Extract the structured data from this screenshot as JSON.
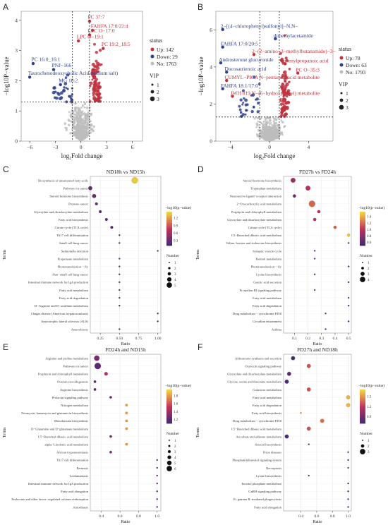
{
  "panels": {
    "A": "A",
    "B": "B",
    "C": "C",
    "D": "D",
    "E": "E",
    "F": "F"
  },
  "colors": {
    "up": "#c0313e",
    "down": "#2f3f8f",
    "no": "#bdbdbd",
    "cbar_low": "#3b2a78",
    "cbar_mid": "#c0305a",
    "cbar_high": "#f3d43a"
  },
  "chart_data": [
    {
      "panel": "A",
      "type": "scatter",
      "xlabel_main": "log",
      "xlabel_sub": "2",
      "xlabel_rest": "Fold change",
      "ylabel": "−log10P−value",
      "xticks": [
        "−6",
        "−3",
        "0",
        "3",
        "6"
      ],
      "xtick_values": [
        -6,
        -3,
        0,
        3,
        6
      ],
      "yticks": [
        "0",
        "1",
        "2",
        "3",
        "4"
      ],
      "ytick_values": [
        0,
        1,
        2,
        3,
        4
      ],
      "xlim": [
        -7,
        7.2
      ],
      "ylim": [
        0,
        4.3
      ],
      "thresholds": {
        "x": [
          -1,
          1
        ],
        "y": 1.3
      },
      "legend": {
        "status_title": "status",
        "up": "Up: 142",
        "down": "Down: 29",
        "no": "No: 1763",
        "vip_title": "VIP",
        "vip_levels": [
          "1",
          "2",
          "3"
        ]
      },
      "annotations": [
        {
          "text": "PC 37:7",
          "x": 0.8,
          "y": 4.05,
          "side": "up"
        },
        {
          "text": "FAHFA 17:0/22:4",
          "x": 1.15,
          "y": 3.75,
          "side": "up"
        },
        {
          "text": "LPC O−17:0",
          "x": 0.8,
          "y": 3.6,
          "side": "up"
        },
        {
          "text": "LPC O−19:1",
          "x": -0.5,
          "y": 3.4,
          "side": "up"
        },
        {
          "text": "PC 19:2_18:5",
          "x": 2.4,
          "y": 3.15,
          "side": "up"
        },
        {
          "text": "PC 16:0_16:1",
          "x": -5.8,
          "y": 2.65,
          "side": "down"
        },
        {
          "text": "PNJ−166",
          "x": -3.4,
          "y": 2.45,
          "side": "down"
        },
        {
          "text": "Taurochenodeoxycholic Acid (sodium salt)",
          "x": -6.2,
          "y": 2.2,
          "side": "down"
        },
        {
          "text": "MG 18:2",
          "x": -2.6,
          "y": 1.95,
          "side": "down"
        }
      ]
    },
    {
      "panel": "B",
      "type": "scatter",
      "xlabel_main": "log",
      "xlabel_sub": "2",
      "xlabel_rest": "Fold change",
      "ylabel": "−log10P−value",
      "xticks": [
        "−4",
        "0",
        "4"
      ],
      "xtick_values": [
        -4,
        0,
        4
      ],
      "yticks": [
        "0",
        "2",
        "4",
        "6"
      ],
      "ytick_values": [
        0,
        2,
        4,
        6
      ],
      "xlim": [
        -5.5,
        6.5
      ],
      "ylim": [
        0,
        7
      ],
      "thresholds": {
        "x": [
          -1,
          1
        ],
        "y": 1.3
      },
      "legend": {
        "status_title": "status",
        "up": "Up: 78",
        "down": "Down: 63",
        "no": "No: 1793",
        "vip_title": "VIP",
        "vip_levels": [
          "1",
          "2",
          "3"
        ]
      },
      "annotations": [
        {
          "text": "2−[(4−chlorophenyl)sulfonyl]−N,N−",
          "x": -5.0,
          "y": 6.1,
          "side": "down"
        },
        {
          "text": "dimethylacetamide",
          "x": 0.4,
          "y": 5.6,
          "side": "down"
        },
        {
          "text": "FAHFA 17:0/20:5",
          "x": -5.0,
          "y": 5.15,
          "side": "down"
        },
        {
          "text": "2−(2−amino−3−methylbutanamido)−3−",
          "x": -1.8,
          "y": 4.75,
          "side": "up"
        },
        {
          "text": "Androsterone glucuronide",
          "x": -5.2,
          "y": 4.3,
          "side": "down"
        },
        {
          "text": "phenylpropanoic acid",
          "x": 1.4,
          "y": 4.25,
          "side": "up"
        },
        {
          "text": "Docosatrienoic acid",
          "x": -4.6,
          "y": 3.8,
          "side": "down"
        },
        {
          "text": "PC O−35:3",
          "x": 2.7,
          "y": 3.75,
          "side": "up"
        },
        {
          "text": "CUMYL−PICA N−pentanoic acid metabolite",
          "x": -4.6,
          "y": 3.35,
          "side": "up"
        },
        {
          "text": "FAHFA 18:1/17:0",
          "x": -5.0,
          "y": 2.9,
          "side": "down"
        },
        {
          "text": "JWH 019 N−(6−hydroxyhexyl) metabolite",
          "x": -4.0,
          "y": 2.5,
          "side": "up"
        }
      ]
    },
    {
      "panel": "C",
      "type": "scatter",
      "subtype": "enrichment",
      "title": "ND18h vs ND15h",
      "xlabel": "Ratio",
      "ylabel": "Terms",
      "xticks": [
        "0.25",
        "0.50",
        "0.75",
        "1.00"
      ],
      "xtick_values": [
        0.25,
        0.5,
        0.75,
        1.0
      ],
      "xlim": [
        0.12,
        1.04
      ],
      "colorbar": {
        "title": "−log10(p−value)",
        "ticks": [
          "1.2",
          "0.9",
          "0.6",
          "0.3"
        ],
        "tick_values": [
          1.2,
          0.9,
          0.6,
          0.3
        ],
        "range": [
          0.1,
          1.45
        ]
      },
      "size_legend": {
        "title": "Number",
        "levels": [
          "1",
          "2",
          "3",
          "4",
          "5"
        ]
      },
      "terms": [
        {
          "label": "Biosynthesis of unsaturated fatty acids",
          "ratio": 0.7,
          "number": 5,
          "logp": 1.4
        },
        {
          "label": "Pathways in cancer",
          "ratio": 0.12,
          "number": 3,
          "logp": 0.3
        },
        {
          "label": "Steroid hormone biosynthesis",
          "ratio": 0.17,
          "number": 3,
          "logp": 0.35
        },
        {
          "label": "Prostate cancer",
          "ratio": 0.2,
          "number": 2,
          "logp": 0.3
        },
        {
          "label": "Glyoxylate and dicarboxylate metabolism",
          "ratio": 0.25,
          "number": 2,
          "logp": 0.3
        },
        {
          "label": "Fatty acid biosynthesis",
          "ratio": 0.33,
          "number": 2,
          "logp": 0.25
        },
        {
          "label": "Citrate cycle (TCA cycle)",
          "ratio": 0.4,
          "number": 2,
          "logp": 0.25
        },
        {
          "label": "Th17 cell differentiation",
          "ratio": 0.5,
          "number": 1,
          "logp": 0.2
        },
        {
          "label": "Small cell lung cancer",
          "ratio": 0.5,
          "number": 1,
          "logp": 0.2
        },
        {
          "label": "Salmonella infection",
          "ratio": 1.0,
          "number": 1,
          "logp": 0.2
        },
        {
          "label": "Propanoate metabolism",
          "ratio": 0.5,
          "number": 1,
          "logp": 0.2
        },
        {
          "label": "Phototransduction − fly",
          "ratio": 0.5,
          "number": 1,
          "logp": 0.2
        },
        {
          "label": "Non−small cell lung cancer",
          "ratio": 0.5,
          "number": 1,
          "logp": 0.2
        },
        {
          "label": "Intestinal immune network for IgA production",
          "ratio": 0.5,
          "number": 1,
          "logp": 0.2
        },
        {
          "label": "Fatty acid metabolism",
          "ratio": 0.5,
          "number": 1,
          "logp": 0.2
        },
        {
          "label": "Fatty acid degradation",
          "ratio": 0.5,
          "number": 1,
          "logp": 0.2
        },
        {
          "label": "D−Arginine and D−ornithine metabolism",
          "ratio": 0.5,
          "number": 1,
          "logp": 0.2
        },
        {
          "label": "Chagas disease (American trypanosomiasis)",
          "ratio": 1.0,
          "number": 1,
          "logp": 0.2
        },
        {
          "label": "Amyotrophic lateral sclerosis (ALS)",
          "ratio": 1.0,
          "number": 1,
          "logp": 0.2
        },
        {
          "label": "Anaerobiosis",
          "ratio": 0.5,
          "number": 1,
          "logp": 0.2
        }
      ]
    },
    {
      "panel": "D",
      "type": "scatter",
      "subtype": "enrichment",
      "title": "FD27h vs FD24h",
      "xlabel": "Ratio",
      "ylabel": "Terms",
      "xticks": [
        "0.1",
        "0.2",
        "0.3",
        "0.4",
        "0.5"
      ],
      "xtick_values": [
        0.1,
        0.2,
        0.3,
        0.4,
        0.5
      ],
      "xlim": [
        0.02,
        0.52
      ],
      "colorbar": {
        "title": "−log10(p−value)",
        "ticks": [
          "1.4",
          "1.2",
          "1.0",
          "0.8",
          "0.6"
        ],
        "tick_values": [
          1.4,
          1.2,
          1.0,
          0.8,
          0.6
        ],
        "range": [
          0.5,
          1.55
        ]
      },
      "size_legend": {
        "title": "Number",
        "levels": [
          "1",
          "2",
          "3",
          "4"
        ]
      },
      "terms": [
        {
          "label": "Steroid hormone biosynthesis",
          "ratio": 0.09,
          "number": 3,
          "logp": 0.9
        },
        {
          "label": "Tryptophan metabolism",
          "ratio": 0.2,
          "number": 3,
          "logp": 1.0
        },
        {
          "label": "Neuroactive ligand−receptor interaction",
          "ratio": 0.1,
          "number": 2,
          "logp": 0.7
        },
        {
          "label": "2−Oxocarboxylic acid metabolism",
          "ratio": 0.23,
          "number": 4,
          "logp": 1.2
        },
        {
          "label": "Porphyrin and chlorophyll metabolism",
          "ratio": 0.28,
          "number": 2,
          "logp": 1.0
        },
        {
          "label": "Glyoxylate and dicarboxylate metabolism",
          "ratio": 0.25,
          "number": 2,
          "logp": 1.0
        },
        {
          "label": "Citrate cycle (TCA cycle)",
          "ratio": 0.4,
          "number": 2,
          "logp": 1.2
        },
        {
          "label": "C5−Branched dibasic acid metabolism",
          "ratio": 0.5,
          "number": 2,
          "logp": 1.5
        },
        {
          "label": "Valine, leucine and isoleucine biosynthesis",
          "ratio": 0.5,
          "number": 1,
          "logp": 0.6
        },
        {
          "label": "Synaptic vesicle cycle",
          "ratio": 0.25,
          "number": 1,
          "logp": 0.6
        },
        {
          "label": "Retinol metabolism",
          "ratio": 0.25,
          "number": 1,
          "logp": 0.6
        },
        {
          "label": "Phototransduction − fly",
          "ratio": 0.5,
          "number": 1,
          "logp": 0.6
        },
        {
          "label": "Lysine biosynthesis",
          "ratio": 0.25,
          "number": 1,
          "logp": 0.6
        },
        {
          "label": "Gastric acid secretion",
          "ratio": 0.5,
          "number": 1,
          "logp": 0.6
        },
        {
          "label": "Fc epsilon RI signaling pathway",
          "ratio": 0.25,
          "number": 1,
          "logp": 0.6
        },
        {
          "label": "Fatty acid metabolism",
          "ratio": 0.5,
          "number": 1,
          "logp": 0.6
        },
        {
          "label": "Fatty acid degradation",
          "ratio": 0.5,
          "number": 1,
          "logp": 0.6
        },
        {
          "label": "Drug metabolism − cytochrome P450",
          "ratio": 0.33,
          "number": 1,
          "logp": 0.6
        },
        {
          "label": "Circadian entrainment",
          "ratio": 0.5,
          "number": 1,
          "logp": 0.6
        },
        {
          "label": "Asthma",
          "ratio": 0.33,
          "number": 1,
          "logp": 0.6
        }
      ]
    },
    {
      "panel": "E",
      "type": "scatter",
      "subtype": "enrichment",
      "title": "FD24h and ND15h",
      "xlabel": "Ratio",
      "ylabel": "Terms",
      "xticks": [
        "0.4",
        "0.6",
        "0.8",
        "1.0"
      ],
      "xtick_values": [
        0.4,
        0.6,
        0.8,
        1.0
      ],
      "xlim": [
        0.28,
        1.04
      ],
      "colorbar": {
        "title": "−log10(p−value)",
        "ticks": [
          "1.8",
          "1.6",
          "1.4",
          "1.2"
        ],
        "tick_values": [
          1.8,
          1.6,
          1.4,
          1.2
        ],
        "range": [
          1.1,
          1.95
        ]
      },
      "size_legend": {
        "title": "Number",
        "levels": [
          "1",
          "2",
          "3",
          "4",
          "5",
          "6"
        ]
      },
      "terms": [
        {
          "label": "Arginine and proline metabolism",
          "ratio": 0.35,
          "number": 5,
          "logp": 1.3
        },
        {
          "label": "Pathways in cancer",
          "ratio": 0.36,
          "number": 6,
          "logp": 1.2
        },
        {
          "label": "Porphyrin and chlorophyll metabolism",
          "ratio": 0.45,
          "number": 3,
          "logp": 1.5
        },
        {
          "label": "Ovarian steroidogenesis",
          "ratio": 0.33,
          "number": 2,
          "logp": 1.2
        },
        {
          "label": "Arginine biosynthesis",
          "ratio": 0.33,
          "number": 2,
          "logp": 1.2
        },
        {
          "label": "Prolactin signaling pathway",
          "ratio": 0.5,
          "number": 2,
          "logp": 1.3
        },
        {
          "label": "Nitrogen metabolism",
          "ratio": 0.67,
          "number": 2,
          "logp": 1.8
        },
        {
          "label": "Neomycin, kanamycin and gentamicin biosynthesis",
          "ratio": 0.67,
          "number": 2,
          "logp": 1.8
        },
        {
          "label": "Monobactam biosynthesis",
          "ratio": 0.67,
          "number": 2,
          "logp": 1.8
        },
        {
          "label": "D−Glutamine and D−glutamate metabolism",
          "ratio": 0.67,
          "number": 2,
          "logp": 1.8
        },
        {
          "label": "C5−Branched dibasic acid metabolism",
          "ratio": 0.5,
          "number": 2,
          "logp": 1.3
        },
        {
          "label": "alpha−Linolenic acid metabolism",
          "ratio": 0.67,
          "number": 2,
          "logp": 1.8
        },
        {
          "label": "African trypanosomiasis",
          "ratio": 0.5,
          "number": 2,
          "logp": 1.3
        },
        {
          "label": "Th17 cell differentiation",
          "ratio": 1.0,
          "number": 1,
          "logp": 1.2
        },
        {
          "label": "Pertussis",
          "ratio": 1.0,
          "number": 1,
          "logp": 1.2
        },
        {
          "label": "Leishmaniasis",
          "ratio": 1.0,
          "number": 1,
          "logp": 1.2
        },
        {
          "label": "Intestinal immune network for IgA production",
          "ratio": 1.0,
          "number": 1,
          "logp": 1.2
        },
        {
          "label": "Fatty acid elongation",
          "ratio": 1.0,
          "number": 1,
          "logp": 1.2
        },
        {
          "label": "Endocrine and other factor−regulated calcium reabsorption",
          "ratio": 1.0,
          "number": 1,
          "logp": 1.2
        },
        {
          "label": "Amoebiasis",
          "ratio": 1.0,
          "number": 1,
          "logp": 1.2
        }
      ]
    },
    {
      "panel": "F",
      "type": "scatter",
      "subtype": "enrichment",
      "title": "FD27h and ND18h",
      "xlabel": "Ratio",
      "ylabel": "Terms",
      "xticks": [
        "0.4",
        "0.6",
        "0.8",
        "1.0"
      ],
      "xtick_values": [
        0.4,
        0.6,
        0.8,
        1.0
      ],
      "xlim": [
        0.18,
        1.04
      ],
      "colorbar": {
        "title": "−log10(p−value)",
        "ticks": [
          "1.5",
          "1.2",
          "0.9"
        ],
        "tick_values": [
          1.5,
          1.2,
          0.9
        ],
        "range": [
          0.7,
          1.7
        ]
      },
      "size_legend": {
        "title": "Number",
        "levels": [
          "1",
          "2",
          "3"
        ]
      },
      "terms": [
        {
          "label": "Aldosterone synthesis and secretion",
          "ratio": 0.3,
          "number": 2,
          "logp": 0.75
        },
        {
          "label": "Oxytocin signaling pathway",
          "ratio": 0.5,
          "number": 2,
          "logp": 1.3
        },
        {
          "label": "Glyoxylate and dicarboxylate metabolism",
          "ratio": 0.25,
          "number": 2,
          "logp": 0.8
        },
        {
          "label": "Glycine, serine and threonine metabolism",
          "ratio": 0.22,
          "number": 2,
          "logp": 0.75
        },
        {
          "label": "Galactose metabolism",
          "ratio": 0.5,
          "number": 2,
          "logp": 1.3
        },
        {
          "label": "Fatty acid metabolism",
          "ratio": 1.0,
          "number": 2,
          "logp": 1.6
        },
        {
          "label": "Fatty acid degradation",
          "ratio": 1.0,
          "number": 2,
          "logp": 1.6
        },
        {
          "label": "Fatty acid biosynthesis",
          "ratio": 0.4,
          "number": 1,
          "logp": 1.5
        },
        {
          "label": "Drug metabolism − cytochrome P450",
          "ratio": 0.67,
          "number": 2,
          "logp": 1.4
        },
        {
          "label": "C5−Branched dibasic acid metabolism",
          "ratio": 0.5,
          "number": 2,
          "logp": 1.3
        },
        {
          "label": "Ascorbate and aldarate metabolism",
          "ratio": 0.22,
          "number": 2,
          "logp": 0.75
        },
        {
          "label": "Steroid biosynthesis",
          "ratio": 0.5,
          "number": 1,
          "logp": 0.8
        },
        {
          "label": "Prion diseases",
          "ratio": 1.0,
          "number": 1,
          "logp": 0.8
        },
        {
          "label": "Phosphatidylinositol signaling system",
          "ratio": 1.0,
          "number": 1,
          "logp": 0.8
        },
        {
          "label": "Necroptosis",
          "ratio": 1.0,
          "number": 1,
          "logp": 0.8
        },
        {
          "label": "Lysine biosynthesis",
          "ratio": 0.5,
          "number": 1,
          "logp": 0.8
        },
        {
          "label": "Inositol phosphate metabolism",
          "ratio": 1.0,
          "number": 1,
          "logp": 0.8
        },
        {
          "label": "GnRH signaling pathway",
          "ratio": 1.0,
          "number": 1,
          "logp": 0.8
        },
        {
          "label": "Fc gamma R−mediated phagocytosis",
          "ratio": 1.0,
          "number": 1,
          "logp": 0.8
        },
        {
          "label": "Fatty acid elongation",
          "ratio": 1.0,
          "number": 1,
          "logp": 0.8
        }
      ]
    }
  ]
}
